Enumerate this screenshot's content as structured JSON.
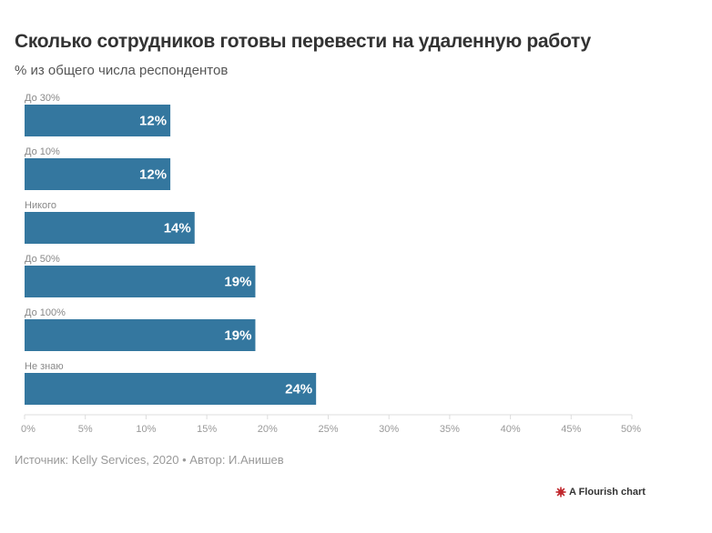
{
  "header": {
    "title": "Сколько сотрудников готовы перевести на удаленную работу",
    "subtitle": "% из общего числа респондентов"
  },
  "footer": {
    "source": "Источник: Kelly Services, 2020 • Автор: И.Анишев",
    "credit": "A Flourish chart"
  },
  "colors": {
    "bar": "#34779f",
    "axis": "#dddddd",
    "credit_icon": "#c0282d"
  },
  "chart_data": {
    "type": "bar",
    "orientation": "horizontal",
    "title": "Сколько сотрудников готовы перевести на удаленную работу",
    "subtitle": "% из общего числа респондентов",
    "categories": [
      "До 30%",
      "До 10%",
      "Никого",
      "До 50%",
      "До 100%",
      "Не знаю"
    ],
    "values": [
      12,
      12,
      14,
      19,
      19,
      24
    ],
    "value_labels": [
      "12%",
      "12%",
      "14%",
      "19%",
      "19%",
      "24%"
    ],
    "xlim": [
      0,
      50
    ],
    "xticks": [
      0,
      5,
      10,
      15,
      20,
      25,
      30,
      35,
      40,
      45,
      50
    ],
    "xtick_labels": [
      "0%",
      "5%",
      "10%",
      "15%",
      "20%",
      "25%",
      "30%",
      "35%",
      "40%",
      "45%",
      "50%"
    ],
    "xlabel": "",
    "ylabel": "",
    "grid": false
  }
}
